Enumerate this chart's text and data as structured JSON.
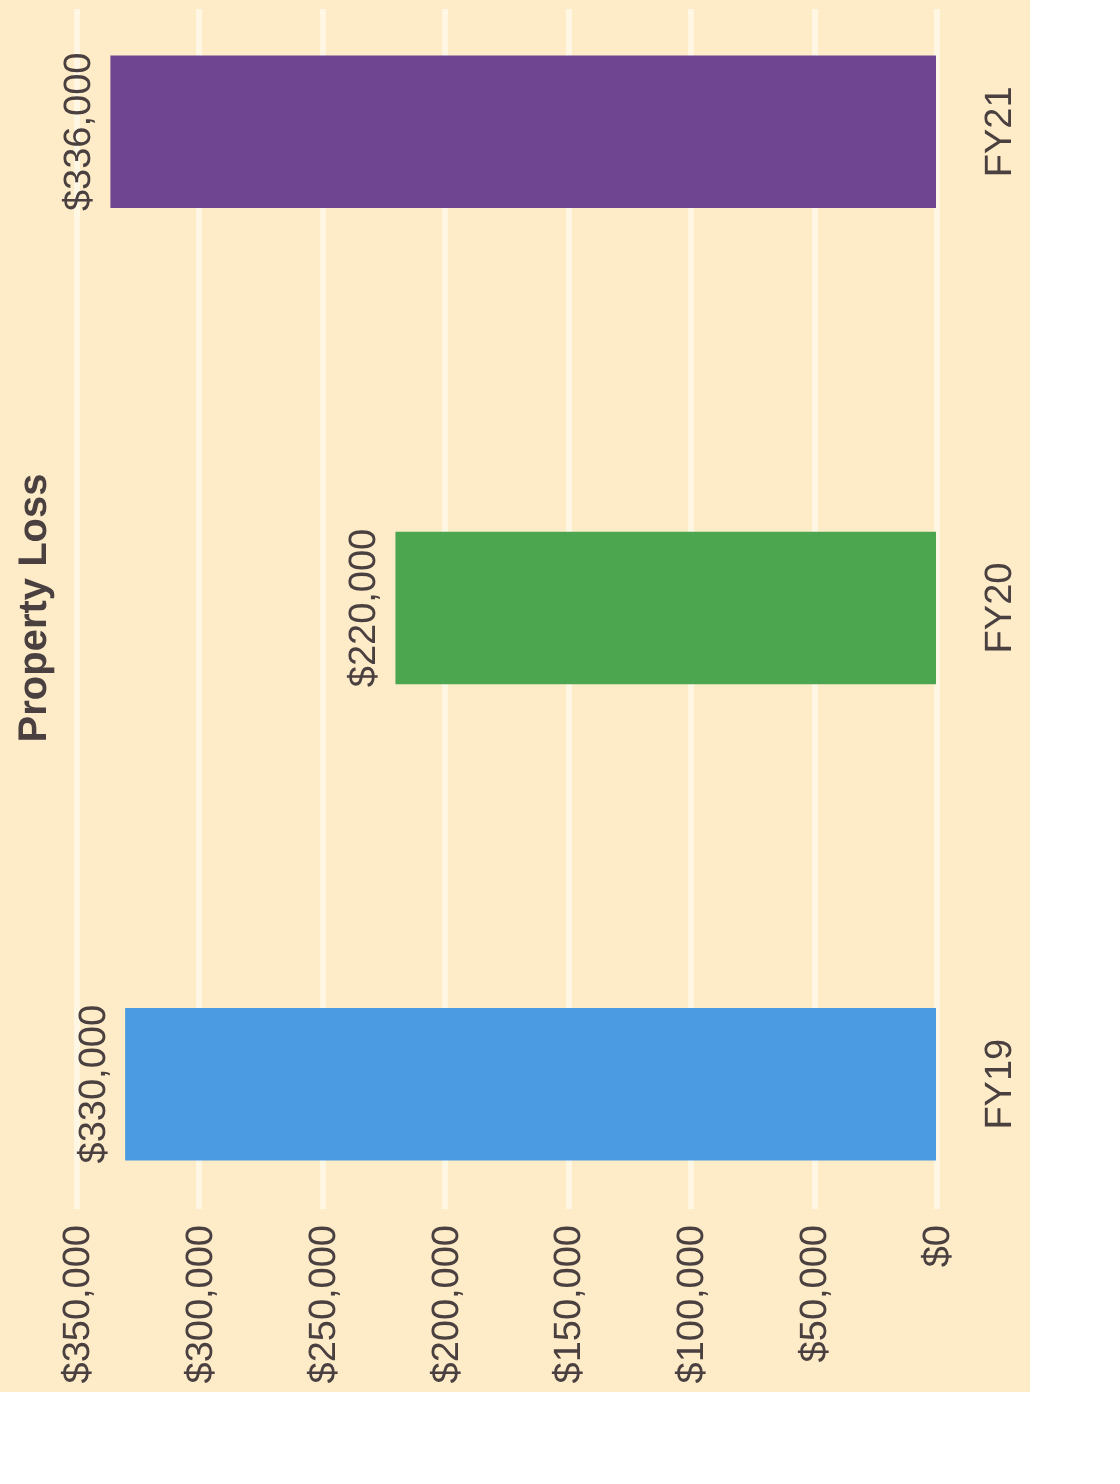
{
  "chart_data": {
    "type": "bar",
    "title": "Property Loss",
    "orientation": "horizontal",
    "categories": [
      "FY21",
      "FY20",
      "FY19"
    ],
    "values": [
      336000,
      220000,
      330000
    ],
    "colors": [
      "#6f4592",
      "#4ba64f",
      "#4a9be2"
    ],
    "value_labels": [
      "$336,000",
      "$220,000",
      "$330,000"
    ],
    "xlim": [
      350000,
      0
    ],
    "xticks": [
      {
        "value": 350000,
        "label": "$350,000"
      },
      {
        "value": 300000,
        "label": "$300,000"
      },
      {
        "value": 250000,
        "label": "$250,000"
      },
      {
        "value": 200000,
        "label": "$200,000"
      },
      {
        "value": 150000,
        "label": "$150,000"
      },
      {
        "value": 100000,
        "label": "$100,000"
      },
      {
        "value": 50000,
        "label": "$50,000"
      },
      {
        "value": 0,
        "label": "$0"
      }
    ],
    "grid": "x"
  }
}
